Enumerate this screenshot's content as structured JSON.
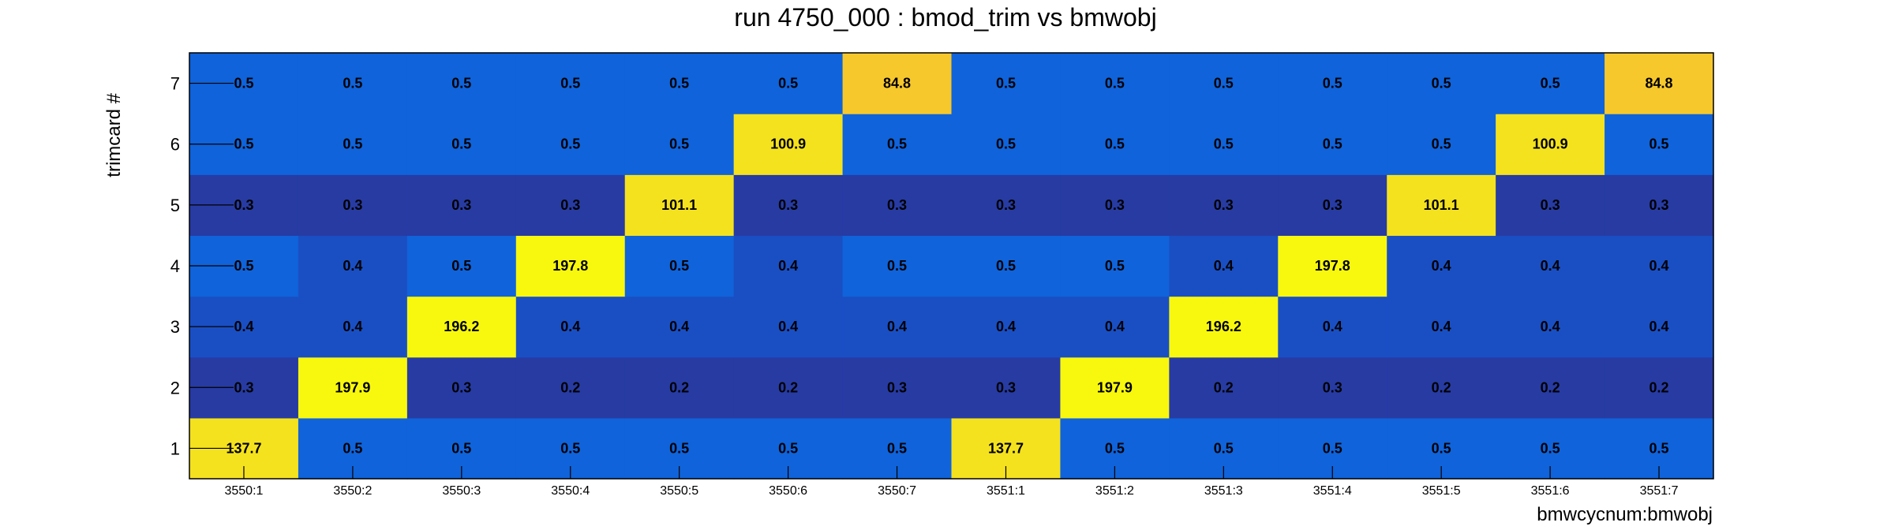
{
  "chart_data": {
    "type": "heatmap",
    "title": "run 4750_000 : bmod_trim vs bmwobj",
    "xlabel": "bmwcycnum:bmwobj",
    "ylabel": "trimcard #",
    "x_categories": [
      "3550:1",
      "3550:2",
      "3550:3",
      "3550:4",
      "3550:5",
      "3550:6",
      "3550:7",
      "3551:1",
      "3551:2",
      "3551:3",
      "3551:4",
      "3551:5",
      "3551:6",
      "3551:7"
    ],
    "y_categories": [
      "1",
      "2",
      "3",
      "4",
      "5",
      "6",
      "7"
    ],
    "values": [
      [
        "137.7",
        "0.5",
        "0.5",
        "0.5",
        "0.5",
        "0.5",
        "0.5",
        "137.7",
        "0.5",
        "0.5",
        "0.5",
        "0.5",
        "0.5",
        "0.5"
      ],
      [
        "0.3",
        "197.9",
        "0.3",
        "0.2",
        "0.2",
        "0.2",
        "0.3",
        "0.3",
        "197.9",
        "0.2",
        "0.3",
        "0.2",
        "0.2",
        "0.2"
      ],
      [
        "0.4",
        "0.4",
        "196.2",
        "0.4",
        "0.4",
        "0.4",
        "0.4",
        "0.4",
        "0.4",
        "196.2",
        "0.4",
        "0.4",
        "0.4",
        "0.4"
      ],
      [
        "0.5",
        "0.4",
        "0.5",
        "197.8",
        "0.5",
        "0.4",
        "0.5",
        "0.5",
        "0.5",
        "0.4",
        "197.8",
        "0.4",
        "0.4",
        "0.4"
      ],
      [
        "0.3",
        "0.3",
        "0.3",
        "0.3",
        "101.1",
        "0.3",
        "0.3",
        "0.3",
        "0.3",
        "0.3",
        "0.3",
        "101.1",
        "0.3",
        "0.3"
      ],
      [
        "0.5",
        "0.5",
        "0.5",
        "0.5",
        "0.5",
        "100.9",
        "0.5",
        "0.5",
        "0.5",
        "0.5",
        "0.5",
        "0.5",
        "100.9",
        "0.5"
      ],
      [
        "0.5",
        "0.5",
        "0.5",
        "0.5",
        "0.5",
        "0.5",
        "84.8",
        "0.5",
        "0.5",
        "0.5",
        "0.5",
        "0.5",
        "0.5",
        "84.8"
      ]
    ],
    "grid": false,
    "legend": "none"
  }
}
